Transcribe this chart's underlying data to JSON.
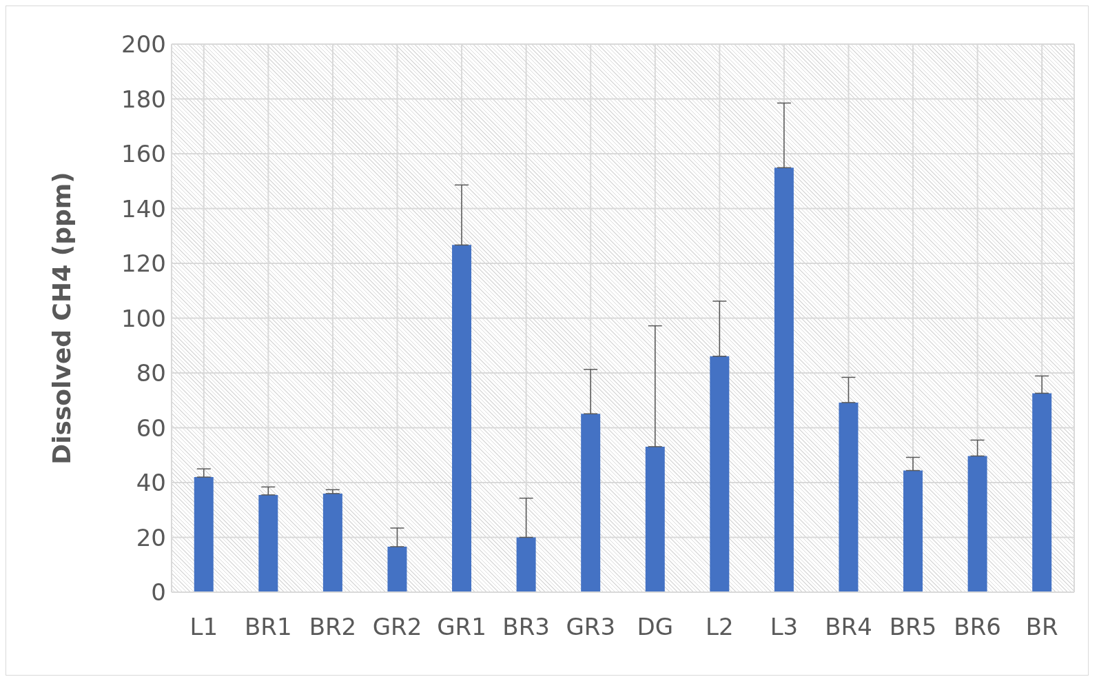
{
  "chart_data": {
    "type": "bar",
    "ylabel": "Dissolved CH4 (ppm)",
    "categories": [
      "L1",
      "BR1",
      "BR2",
      "GR2",
      "GR1",
      "BR3",
      "GR3",
      "DG",
      "L2",
      "L3",
      "BR4",
      "BR5",
      "BR6",
      "BR"
    ],
    "values": [
      42,
      35.5,
      36,
      16.6,
      126.7,
      20,
      65.1,
      53.1,
      86.1,
      154.9,
      69.2,
      44.4,
      49.7,
      72.6
    ],
    "errors": [
      [
        42,
        45
      ],
      [
        35.5,
        38.4
      ],
      [
        36,
        37.4
      ],
      [
        16.6,
        23.4
      ],
      [
        126.7,
        148.6
      ],
      [
        20,
        34.3
      ],
      [
        65.1,
        81.3
      ],
      [
        53.1,
        97.2
      ],
      [
        86.1,
        106.2
      ],
      [
        154.9,
        178.5
      ],
      [
        69.2,
        78.4
      ],
      [
        44.4,
        49.2
      ],
      [
        49.7,
        55.5
      ],
      [
        72.6,
        78.9
      ]
    ],
    "color": "#4472c4",
    "ylim": [
      0,
      200
    ],
    "yticks": [
      0,
      20,
      40,
      60,
      80,
      100,
      120,
      140,
      160,
      180,
      200
    ],
    "grid": true
  }
}
